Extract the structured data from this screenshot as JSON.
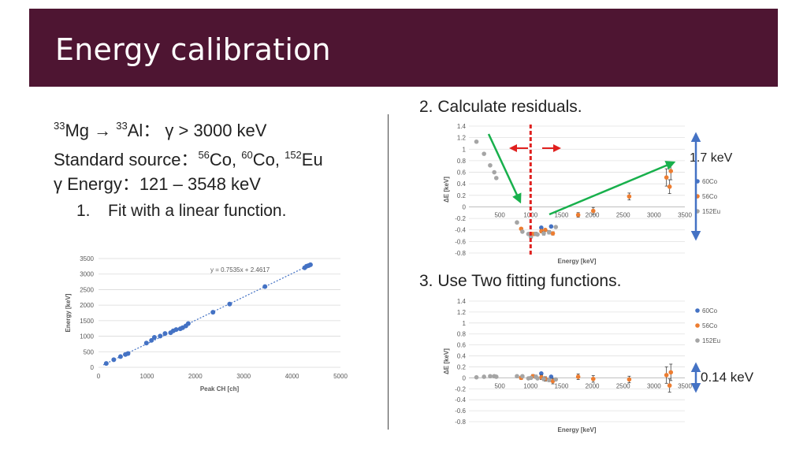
{
  "slide": {
    "title": "Energy calibration",
    "reaction": {
      "a1": "33",
      "e1": "Mg",
      "arrow": "→",
      "a2": "33",
      "e2": "Al",
      "rest": "： γ > 3000 keV"
    },
    "source": {
      "label": "Standard source：",
      "n1": "56",
      "s1": "Co, ",
      "n2": "60",
      "s2": "Co, ",
      "n3": "152",
      "s3": "Eu"
    },
    "energy_range": "γ Energy：121 – 3548 keV",
    "step1": {
      "num": "1.",
      "text": "Fit with a linear function."
    },
    "step2": "2. Calculate residuals.",
    "step3": "3. Use Two fitting functions.",
    "note_17": "1.7 keV",
    "note_014": "0.14 keV"
  },
  "chart_data": [
    {
      "type": "scatter",
      "title": "",
      "xlabel": "Peak CH [ch]",
      "ylabel": "Energy [keV]",
      "xlim": [
        0,
        5000
      ],
      "ylim": [
        0,
        3500
      ],
      "xticks": [
        0,
        1000,
        2000,
        3000,
        4000,
        5000
      ],
      "yticks": [
        0,
        500,
        1000,
        1500,
        2000,
        2500,
        3000,
        3500
      ],
      "annotation": "y = 0.7535x + 2.4617",
      "fit": {
        "slope": 0.7535,
        "intercept": 2.4617
      },
      "color": "#4472c4",
      "x": [
        160,
        315,
        455,
        555,
        610,
        990,
        1095,
        1155,
        1275,
        1375,
        1490,
        1545,
        1605,
        1690,
        1740,
        1805,
        1855,
        2365,
        2710,
        3440,
        4260,
        4300,
        4340,
        4380
      ],
      "y": [
        123,
        245,
        344,
        411,
        444,
        779,
        867,
        964,
        1005,
        1086,
        1112,
        1173,
        1213,
        1238,
        1275,
        1333,
        1408,
        1771,
        2035,
        2598,
        3202,
        3253,
        3273,
        3301
      ]
    },
    {
      "type": "scatter",
      "title": "",
      "xlabel": "Energy [keV]",
      "ylabel": "ΔE [keV]",
      "xlim": [
        0,
        3500
      ],
      "ylim": [
        -0.8,
        1.4
      ],
      "xticks": [
        0,
        500,
        1000,
        1500,
        2000,
        2500,
        3000,
        3500
      ],
      "yticks": [
        -0.8,
        -0.6,
        -0.4,
        -0.2,
        0,
        0.2,
        0.4,
        0.6,
        0.8,
        1,
        1.2,
        1.4
      ],
      "ytick_labels": [
        "-0.8",
        "-0.6",
        "-0.4",
        "-0.2",
        "0",
        "0.2",
        "0.4",
        "0.6",
        "0.8",
        "1",
        "1.2",
        "1.4"
      ],
      "legend": [
        "60Co",
        "56Co",
        "152Eu"
      ],
      "legend_position": "right",
      "series": [
        {
          "name": "60Co",
          "color": "#4472c4",
          "x": [
            1173,
            1333
          ],
          "y": [
            -0.36,
            -0.34
          ],
          "err": [
            0.02,
            0.02
          ]
        },
        {
          "name": "56Co",
          "color": "#ed7d31",
          "x": [
            847,
            1038,
            1175,
            1238,
            1360,
            1771,
            2015,
            2598,
            3202,
            3253,
            3273
          ],
          "y": [
            -0.38,
            -0.47,
            -0.42,
            -0.4,
            -0.46,
            -0.14,
            -0.07,
            0.18,
            0.51,
            0.35,
            0.62
          ],
          "err": [
            0.02,
            0.02,
            0.03,
            0.02,
            0.03,
            0.04,
            0.06,
            0.06,
            0.15,
            0.12,
            0.15
          ]
        },
        {
          "name": "152Eu",
          "color": "#a5a5a5",
          "x": [
            122,
            245,
            344,
            411,
            444,
            779,
            867,
            964,
            1005,
            1086,
            1112,
            1213,
            1299,
            1408
          ],
          "y": [
            1.13,
            0.92,
            0.72,
            0.6,
            0.5,
            -0.27,
            -0.43,
            -0.47,
            -0.52,
            -0.47,
            -0.48,
            -0.46,
            -0.44,
            -0.35
          ],
          "err": [
            0.01,
            0.01,
            0.01,
            0.01,
            0.01,
            0.02,
            0.02,
            0.02,
            0.02,
            0.03,
            0.02,
            0.03,
            0.03,
            0.02
          ]
        }
      ]
    },
    {
      "type": "scatter",
      "title": "",
      "xlabel": "Energy [keV]",
      "ylabel": "ΔE [keV]",
      "xlim": [
        0,
        3500
      ],
      "ylim": [
        -0.8,
        1.4
      ],
      "xticks": [
        0,
        500,
        1000,
        1500,
        2000,
        2500,
        3000,
        3500
      ],
      "yticks": [
        -0.8,
        -0.6,
        -0.4,
        -0.2,
        0,
        0.2,
        0.4,
        0.6,
        0.8,
        1,
        1.2,
        1.4
      ],
      "ytick_labels": [
        "-0.8",
        "-0.6",
        "-0.4",
        "-0.2",
        "0",
        "0.2",
        "0.4",
        "0.6",
        "0.8",
        "1",
        "1.2",
        "1.4"
      ],
      "legend": [
        "60Co",
        "56Co",
        "152Eu"
      ],
      "legend_position": "right",
      "series": [
        {
          "name": "60Co",
          "color": "#4472c4",
          "x": [
            1173,
            1333
          ],
          "y": [
            0.08,
            0.02
          ],
          "err": [
            0.02,
            0.02
          ]
        },
        {
          "name": "56Co",
          "color": "#ed7d31",
          "x": [
            847,
            1038,
            1175,
            1238,
            1360,
            1771,
            2015,
            2598,
            3202,
            3253,
            3273
          ],
          "y": [
            0.0,
            0.03,
            0.01,
            -0.02,
            -0.06,
            0.02,
            -0.02,
            -0.03,
            0.05,
            -0.14,
            0.1
          ],
          "err": [
            0.03,
            0.03,
            0.04,
            0.04,
            0.05,
            0.05,
            0.06,
            0.06,
            0.15,
            0.12,
            0.15
          ]
        },
        {
          "name": "152Eu",
          "color": "#a5a5a5",
          "x": [
            122,
            245,
            344,
            411,
            444,
            779,
            867,
            964,
            1005,
            1086,
            1112,
            1213,
            1299,
            1408
          ],
          "y": [
            0.01,
            0.02,
            0.03,
            0.03,
            0.02,
            0.03,
            0.03,
            -0.01,
            0.0,
            0.02,
            -0.01,
            -0.02,
            -0.04,
            -0.03
          ],
          "err": [
            0.01,
            0.01,
            0.01,
            0.01,
            0.01,
            0.02,
            0.02,
            0.02,
            0.02,
            0.03,
            0.02,
            0.03,
            0.03,
            0.02
          ]
        }
      ]
    }
  ],
  "annotations": {
    "red_dashed_line_energy": 1000,
    "colors": {
      "title_bar": "#4e1532",
      "red": "#e0201e",
      "green": "#18b04c",
      "blue_arrow": "#4472c4"
    }
  }
}
